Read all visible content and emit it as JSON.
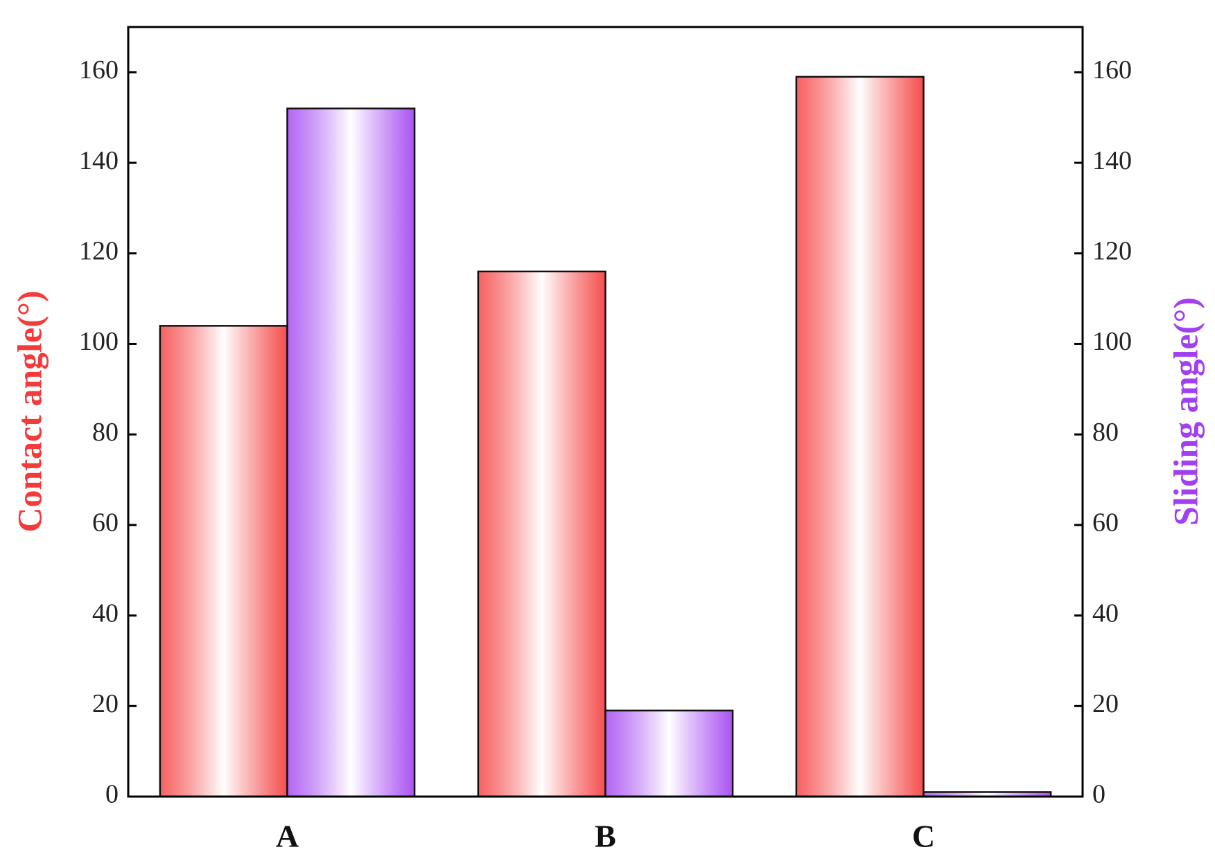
{
  "chart_data": {
    "type": "bar",
    "categories": [
      "A",
      "B",
      "C"
    ],
    "y_label": "Contact angle(°)",
    "y2_label": "Sliding angle(°)",
    "series": [
      {
        "name": "Contact angle",
        "color": "#f43a3a",
        "values": [
          104,
          116,
          159
        ]
      },
      {
        "name": "Sliding angle",
        "color": "#a040f0",
        "values": [
          152,
          19,
          1
        ],
        "axis": "y2"
      }
    ],
    "ylim": [
      0,
      170
    ],
    "yticks": [
      0,
      20,
      40,
      60,
      80,
      100,
      120,
      140,
      160
    ],
    "y2lim": [
      0,
      170
    ],
    "y2ticks": [
      0,
      20,
      40,
      60,
      80,
      100,
      120,
      140,
      160
    ]
  }
}
